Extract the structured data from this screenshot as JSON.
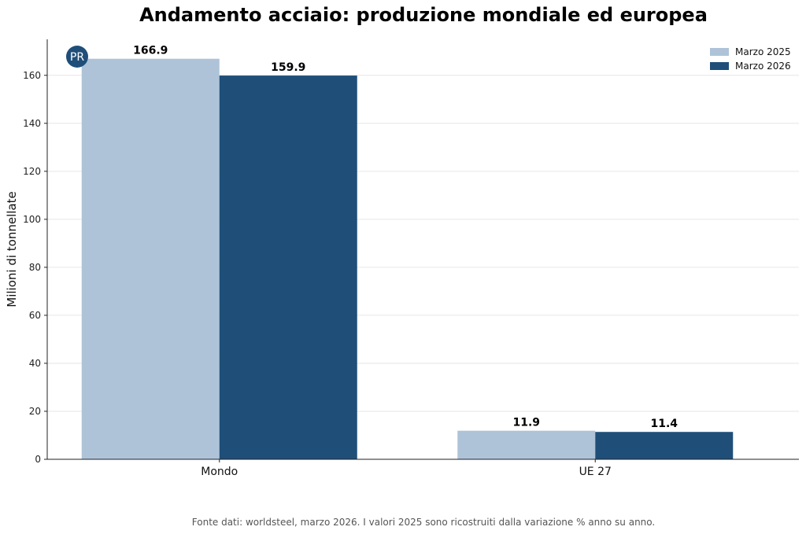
{
  "chart_data": {
    "type": "bar",
    "title": "Andamento acciaio: produzione mondiale ed europea",
    "xlabel": "",
    "ylabel": "Milioni di tonnellate",
    "categories": [
      "Mondo",
      "UE 27"
    ],
    "series": [
      {
        "name": "Marzo 2025",
        "color": "#aec3d7",
        "values": [
          166.9,
          11.9
        ],
        "labels": [
          "166.9",
          "11.9"
        ]
      },
      {
        "name": "Marzo 2026",
        "color": "#1f4e79",
        "values": [
          159.9,
          11.4
        ],
        "labels": [
          "159.9",
          "11.4"
        ]
      }
    ],
    "ylim": [
      0,
      175
    ],
    "yticks": [
      0,
      20,
      40,
      60,
      80,
      100,
      120,
      140,
      160
    ],
    "grid": true,
    "legend_position": "top-right"
  },
  "logo": {
    "text": "PR",
    "color": "#1f4e79"
  },
  "source": "Fonte dati: worldsteel, marzo 2026. I valori 2025 sono ricostruiti dalla variazione % anno su anno."
}
